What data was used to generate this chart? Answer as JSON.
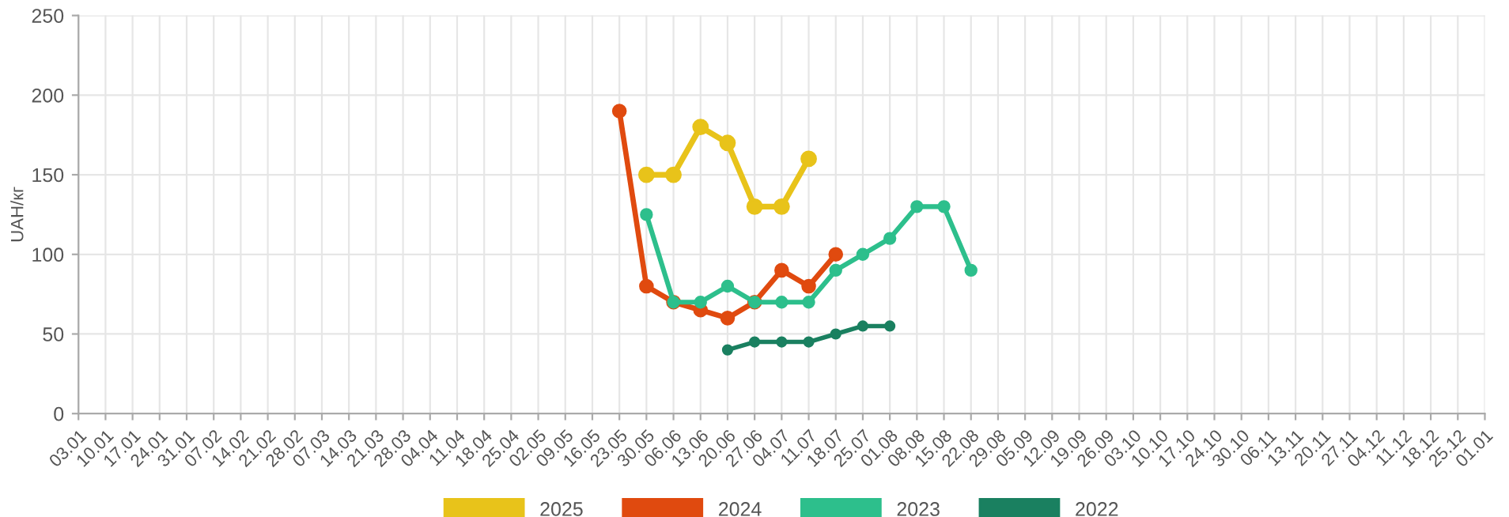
{
  "chart_data": {
    "type": "line",
    "ylabel": "UAH/кг",
    "categories": [
      "03.01",
      "10.01",
      "17.01",
      "24.01",
      "31.01",
      "07.02",
      "14.02",
      "21.02",
      "28.02",
      "07.03",
      "14.03",
      "21.03",
      "28.03",
      "04.04",
      "11.04",
      "18.04",
      "25.04",
      "02.05",
      "09.05",
      "16.05",
      "23.05",
      "30.05",
      "06.06",
      "13.06",
      "20.06",
      "27.06",
      "04.07",
      "11.07",
      "18.07",
      "25.07",
      "01.08",
      "08.08",
      "15.08",
      "22.08",
      "29.08",
      "05.09",
      "12.09",
      "19.09",
      "26.09",
      "03.10",
      "10.10",
      "17.10",
      "24.10",
      "30.10",
      "06.11",
      "13.11",
      "20.11",
      "27.11",
      "04.12",
      "11.12",
      "18.12",
      "25.12",
      "01.01"
    ],
    "series": [
      {
        "name": "2025",
        "color": "#e8c31a",
        "values": [
          null,
          null,
          null,
          null,
          null,
          null,
          null,
          null,
          null,
          null,
          null,
          null,
          null,
          null,
          null,
          null,
          null,
          null,
          null,
          null,
          null,
          150,
          150,
          180,
          170,
          130,
          130,
          160,
          null,
          null,
          null,
          null,
          null,
          null,
          null,
          null,
          null,
          null,
          null,
          null,
          null,
          null,
          null,
          null,
          null,
          null,
          null,
          null,
          null,
          null,
          null,
          null,
          null
        ]
      },
      {
        "name": "2024",
        "color": "#e04a0f",
        "values": [
          null,
          null,
          null,
          null,
          null,
          null,
          null,
          null,
          null,
          null,
          null,
          null,
          null,
          null,
          null,
          null,
          null,
          null,
          null,
          null,
          190,
          80,
          70,
          65,
          60,
          70,
          90,
          80,
          100,
          null,
          null,
          null,
          null,
          null,
          null,
          null,
          null,
          null,
          null,
          null,
          null,
          null,
          null,
          null,
          null,
          null,
          null,
          null,
          null,
          null,
          null,
          null,
          null
        ]
      },
      {
        "name": "2023",
        "color": "#2dbf8c",
        "values": [
          null,
          null,
          null,
          null,
          null,
          null,
          null,
          null,
          null,
          null,
          null,
          null,
          null,
          null,
          null,
          null,
          null,
          null,
          null,
          null,
          null,
          125,
          70,
          70,
          80,
          70,
          70,
          70,
          90,
          100,
          110,
          130,
          130,
          90,
          null,
          null,
          null,
          null,
          null,
          null,
          null,
          null,
          null,
          null,
          null,
          null,
          null,
          null,
          null,
          null,
          null,
          null,
          null
        ]
      },
      {
        "name": "2022",
        "color": "#1a8060",
        "values": [
          null,
          null,
          null,
          null,
          null,
          null,
          null,
          null,
          null,
          null,
          null,
          null,
          null,
          null,
          null,
          null,
          null,
          null,
          null,
          null,
          null,
          null,
          null,
          null,
          40,
          45,
          45,
          45,
          50,
          55,
          55,
          null,
          null,
          null,
          null,
          null,
          null,
          null,
          null,
          null,
          null,
          null,
          null,
          null,
          null,
          null,
          null,
          null,
          null,
          null,
          null,
          null,
          null
        ]
      }
    ],
    "ylim": [
      0,
      250
    ],
    "yticks": [
      0,
      50,
      100,
      150,
      200,
      250
    ],
    "grid": true,
    "legend": "bottom",
    "marker": "circle",
    "line_style": "solid"
  }
}
